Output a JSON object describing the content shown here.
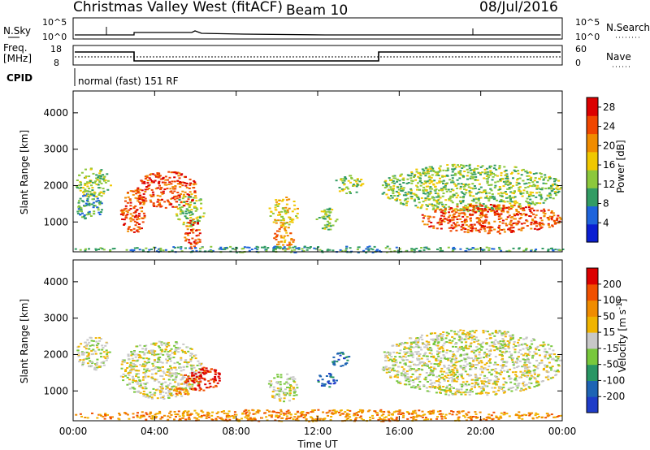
{
  "header": {
    "title": "Christmas Valley West (fitACF)",
    "beam": "Beam 10",
    "date": "08/Jul/2016"
  },
  "top_panels": {
    "nsky_label": "N.Sky",
    "nsearch_label": "N.Search",
    "n_tick_top": "10^5",
    "n_tick_bottom": "10^0",
    "freq_label_line1": "Freq.",
    "freq_label_line2": "[MHz]",
    "freq_ticks": [
      "18",
      "8"
    ],
    "nave_label": "Nave",
    "nave_ticks": [
      "60",
      "0"
    ],
    "cpid_label": "CPID",
    "cpid_text": "normal (fast) 151 RF"
  },
  "chart_data": [
    {
      "type": "heatmap",
      "panel": "power",
      "xlabel": "Time UT",
      "ylabel": "Slant Range [km]",
      "x_ticks": [
        "00:00",
        "04:00",
        "08:00",
        "12:00",
        "16:00",
        "20:00",
        "00:00"
      ],
      "xlim": [
        0,
        24
      ],
      "ylim": [
        180,
        4600
      ],
      "y_ticks": [
        "1000",
        "2000",
        "3000",
        "4000"
      ],
      "colorbar": {
        "label": "Power [dB]",
        "ticks": [
          "4",
          "8",
          "12",
          "16",
          "20",
          "24",
          "28"
        ],
        "range": [
          0,
          30
        ],
        "colors": [
          "#0a1ed2",
          "#1e64dc",
          "#329c64",
          "#8cc83c",
          "#f0c800",
          "#f08c00",
          "#f04600",
          "#dc0000"
        ]
      },
      "echo_regions": [
        {
          "t0": 0.1,
          "t1": 1.8,
          "r0": 1700,
          "r1": 2500,
          "level": 3
        },
        {
          "t0": 0.1,
          "t1": 1.4,
          "r0": 1100,
          "r1": 1800,
          "level": 2
        },
        {
          "t0": 2.3,
          "t1": 3.5,
          "r0": 700,
          "r1": 1900,
          "level": 6
        },
        {
          "t0": 3.0,
          "t1": 6.1,
          "r0": 1400,
          "r1": 2400,
          "level": 6
        },
        {
          "t0": 5.0,
          "t1": 6.4,
          "r0": 900,
          "r1": 1800,
          "level": 3
        },
        {
          "t0": 5.4,
          "t1": 6.2,
          "r0": 250,
          "r1": 1100,
          "level": 6
        },
        {
          "t0": 9.5,
          "t1": 11.0,
          "r0": 900,
          "r1": 1700,
          "level": 4
        },
        {
          "t0": 9.8,
          "t1": 10.8,
          "r0": 250,
          "r1": 900,
          "level": 5
        },
        {
          "t0": 11.9,
          "t1": 12.9,
          "r0": 800,
          "r1": 1400,
          "level": 3
        },
        {
          "t0": 12.8,
          "t1": 14.2,
          "r0": 1800,
          "r1": 2300,
          "level": 3
        },
        {
          "t0": 15.1,
          "t1": 23.9,
          "r0": 1300,
          "r1": 2600,
          "level": 3
        },
        {
          "t0": 17.0,
          "t1": 23.9,
          "r0": 700,
          "r1": 1500,
          "level": 6
        },
        {
          "t0": 0.0,
          "t1": 24.0,
          "r0": 180,
          "r1": 350,
          "level": 2
        }
      ]
    },
    {
      "type": "heatmap",
      "panel": "velocity",
      "xlabel": "Time UT",
      "ylabel": "Slant Range [km]",
      "x_ticks": [
        "00:00",
        "04:00",
        "08:00",
        "12:00",
        "16:00",
        "20:00",
        "00:00"
      ],
      "xlim": [
        0,
        24
      ],
      "ylim": [
        180,
        4600
      ],
      "y_ticks": [
        "1000",
        "2000",
        "3000",
        "4000"
      ],
      "colorbar": {
        "label": "Velocity [m s^-1]",
        "ticks": [
          "200",
          "100",
          "50",
          "15",
          "-15",
          "-50",
          "-100",
          "-200"
        ],
        "range": [
          -250,
          250
        ],
        "colors": [
          "#1e3cc8",
          "#1e64b4",
          "#289664",
          "#78c83c",
          "#c8c8c8",
          "#f0b400",
          "#f08c00",
          "#f05000",
          "#dc0000"
        ]
      },
      "echo_regions": [
        {
          "t0": 0.1,
          "t1": 1.8,
          "r0": 1600,
          "r1": 2500,
          "level": 4
        },
        {
          "t0": 2.3,
          "t1": 6.3,
          "r0": 800,
          "r1": 2400,
          "level": 4
        },
        {
          "t0": 5.4,
          "t1": 7.2,
          "r0": 1000,
          "r1": 1700,
          "level": 8
        },
        {
          "t0": 4.5,
          "t1": 6.0,
          "r0": 900,
          "r1": 1100,
          "level": 6
        },
        {
          "t0": 9.5,
          "t1": 11.0,
          "r0": 700,
          "r1": 1500,
          "level": 4
        },
        {
          "t0": 11.9,
          "t1": 12.9,
          "r0": 1100,
          "r1": 1500,
          "level": 1
        },
        {
          "t0": 12.6,
          "t1": 13.5,
          "r0": 1700,
          "r1": 2100,
          "level": 1
        },
        {
          "t0": 15.1,
          "t1": 23.9,
          "r0": 900,
          "r1": 2700,
          "level": 4
        },
        {
          "t0": 0.0,
          "t1": 24.0,
          "r0": 180,
          "r1": 500,
          "level": 6
        }
      ]
    }
  ]
}
